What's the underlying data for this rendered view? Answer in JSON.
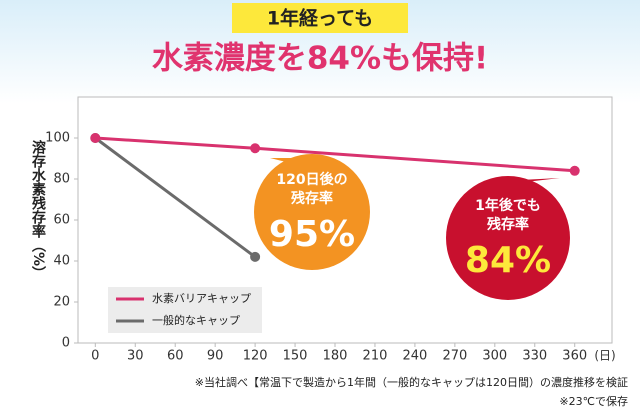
{
  "chart_data": {
    "type": "line",
    "title": "1年経っても",
    "subtitle": "水素濃度を84%も保持!",
    "ylabel": "溶存水素残存率（%）",
    "xlabel": "(日)",
    "xlim": [
      -13,
      388
    ],
    "xticks": [
      0,
      30,
      60,
      90,
      120,
      150,
      180,
      210,
      240,
      270,
      300,
      330,
      360
    ],
    "ylim": [
      0,
      120
    ],
    "yticks": [
      0,
      20,
      40,
      60,
      80,
      100
    ],
    "grid": false,
    "legend": "lower left",
    "series": [
      {
        "name": "水素バリアキャップ",
        "color": "#d8326e",
        "x": [
          0,
          120,
          360
        ],
        "values": [
          100,
          95,
          84
        ]
      },
      {
        "name": "一般的なキャップ",
        "color": "#6b6b6b",
        "x": [
          0,
          120
        ],
        "values": [
          100,
          42
        ]
      }
    ],
    "annotations": [
      {
        "lines": [
          "120日後の",
          "残存率"
        ],
        "value_label": "95%",
        "color": "#f39322"
      },
      {
        "lines": [
          "1年後でも",
          "残存率"
        ],
        "value_label": "84%",
        "color": "#c8102e"
      }
    ],
    "notes": [
      "※当社調べ【常温下で製造から1年間（一般的なキャップは120日間）の濃度推移を検証",
      "※23℃で保存"
    ]
  }
}
